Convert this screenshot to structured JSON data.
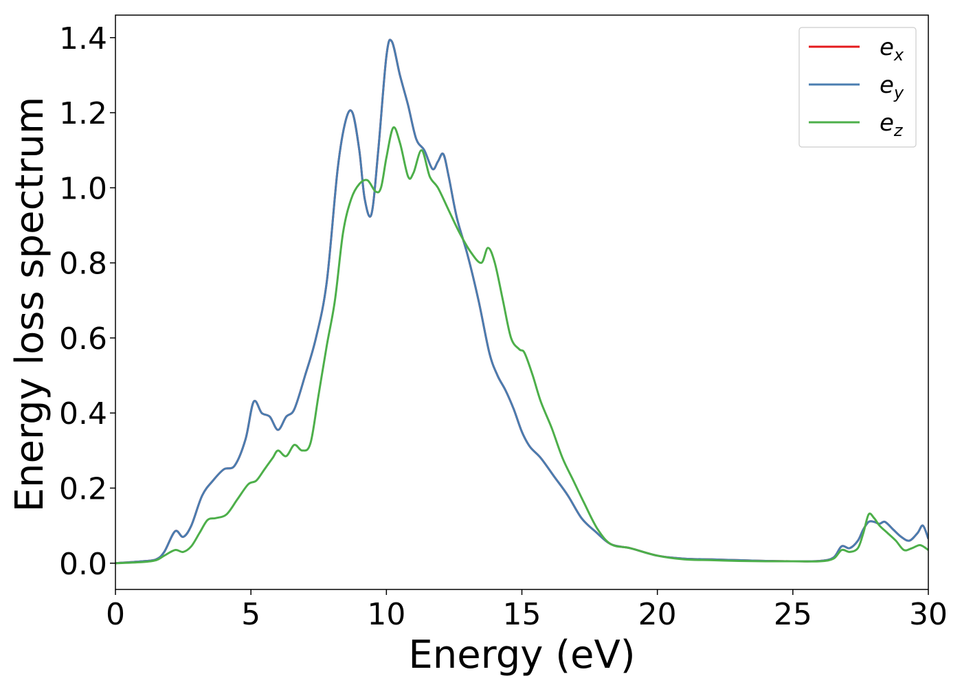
{
  "chart_data": {
    "type": "line",
    "title": "",
    "xlabel": "Energy (eV)",
    "ylabel": "Energy loss spectrum",
    "xlim": [
      0,
      30
    ],
    "ylim": [
      -0.07,
      1.46
    ],
    "xticks": [
      0,
      5,
      10,
      15,
      20,
      25,
      30
    ],
    "xtick_labels": [
      "0",
      "5",
      "10",
      "15",
      "20",
      "25",
      "30"
    ],
    "yticks": [
      0.0,
      0.2,
      0.4,
      0.6,
      0.8,
      1.0,
      1.2,
      1.4
    ],
    "ytick_labels": [
      "0.0",
      "0.2",
      "0.4",
      "0.6",
      "0.8",
      "1.0",
      "1.2",
      "1.4"
    ],
    "grid": false,
    "legend_position": "top-right",
    "series": [
      {
        "name": "e_x",
        "legend_base": "e",
        "legend_sub": "x",
        "color": "#e41a1c",
        "x": [
          0,
          1,
          1.5,
          1.8,
          2.2,
          2.5,
          2.8,
          3.2,
          3.6,
          4.0,
          4.4,
          4.8,
          5.1,
          5.4,
          5.7,
          6.0,
          6.3,
          6.6,
          7.0,
          7.4,
          7.8,
          8.2,
          8.5,
          8.75,
          9.0,
          9.2,
          9.45,
          9.7,
          10.0,
          10.2,
          10.5,
          10.8,
          11.1,
          11.4,
          11.7,
          11.9,
          12.1,
          12.3,
          12.6,
          13.0,
          13.4,
          13.8,
          14.1,
          14.4,
          14.7,
          15.0,
          15.3,
          15.7,
          16.2,
          16.7,
          17.2,
          17.7,
          18.3,
          19.0,
          20.0,
          21.0,
          22.0,
          23.0,
          24.0,
          25.0,
          26.0,
          26.5,
          26.8,
          27.1,
          27.4,
          27.6,
          27.8,
          28.0,
          28.2,
          28.4,
          28.7,
          29.0,
          29.3,
          29.6,
          29.8,
          30.0
        ],
        "y": [
          0.0,
          0.005,
          0.01,
          0.03,
          0.085,
          0.07,
          0.1,
          0.18,
          0.22,
          0.25,
          0.26,
          0.33,
          0.43,
          0.4,
          0.39,
          0.355,
          0.39,
          0.41,
          0.5,
          0.6,
          0.75,
          1.05,
          1.18,
          1.2,
          1.1,
          0.97,
          0.93,
          1.1,
          1.35,
          1.39,
          1.3,
          1.22,
          1.13,
          1.1,
          1.05,
          1.07,
          1.09,
          1.03,
          0.92,
          0.82,
          0.7,
          0.56,
          0.5,
          0.46,
          0.41,
          0.35,
          0.31,
          0.28,
          0.23,
          0.18,
          0.12,
          0.085,
          0.05,
          0.04,
          0.02,
          0.012,
          0.01,
          0.008,
          0.006,
          0.005,
          0.006,
          0.015,
          0.045,
          0.04,
          0.06,
          0.09,
          0.11,
          0.11,
          0.105,
          0.11,
          0.09,
          0.07,
          0.06,
          0.08,
          0.1,
          0.065
        ]
      },
      {
        "name": "e_y",
        "legend_base": "e",
        "legend_sub": "y",
        "color": "#4a7db0",
        "x": [
          0,
          1,
          1.5,
          1.8,
          2.2,
          2.5,
          2.8,
          3.2,
          3.6,
          4.0,
          4.4,
          4.8,
          5.1,
          5.4,
          5.7,
          6.0,
          6.3,
          6.6,
          7.0,
          7.4,
          7.8,
          8.2,
          8.5,
          8.75,
          9.0,
          9.2,
          9.45,
          9.7,
          10.0,
          10.2,
          10.5,
          10.8,
          11.1,
          11.4,
          11.7,
          11.9,
          12.1,
          12.3,
          12.6,
          13.0,
          13.4,
          13.8,
          14.1,
          14.4,
          14.7,
          15.0,
          15.3,
          15.7,
          16.2,
          16.7,
          17.2,
          17.7,
          18.3,
          19.0,
          20.0,
          21.0,
          22.0,
          23.0,
          24.0,
          25.0,
          26.0,
          26.5,
          26.8,
          27.1,
          27.4,
          27.6,
          27.8,
          28.0,
          28.2,
          28.4,
          28.7,
          29.0,
          29.3,
          29.6,
          29.8,
          30.0
        ],
        "y": [
          0.0,
          0.005,
          0.01,
          0.03,
          0.085,
          0.07,
          0.1,
          0.18,
          0.22,
          0.25,
          0.26,
          0.33,
          0.43,
          0.4,
          0.39,
          0.355,
          0.39,
          0.41,
          0.5,
          0.6,
          0.75,
          1.05,
          1.18,
          1.2,
          1.1,
          0.97,
          0.93,
          1.1,
          1.35,
          1.39,
          1.3,
          1.22,
          1.13,
          1.1,
          1.05,
          1.07,
          1.09,
          1.03,
          0.92,
          0.82,
          0.7,
          0.56,
          0.5,
          0.46,
          0.41,
          0.35,
          0.31,
          0.28,
          0.23,
          0.18,
          0.12,
          0.085,
          0.05,
          0.04,
          0.02,
          0.012,
          0.01,
          0.008,
          0.006,
          0.005,
          0.006,
          0.015,
          0.045,
          0.04,
          0.06,
          0.09,
          0.11,
          0.11,
          0.105,
          0.11,
          0.09,
          0.07,
          0.06,
          0.08,
          0.1,
          0.065
        ]
      },
      {
        "name": "e_z",
        "legend_base": "e",
        "legend_sub": "z",
        "color": "#4daf4a",
        "x": [
          0,
          1,
          1.5,
          1.8,
          2.2,
          2.5,
          2.8,
          3.1,
          3.4,
          3.7,
          4.1,
          4.5,
          4.9,
          5.2,
          5.5,
          5.8,
          6.0,
          6.3,
          6.6,
          6.9,
          7.2,
          7.5,
          7.8,
          8.1,
          8.4,
          8.7,
          9.0,
          9.3,
          9.6,
          9.8,
          10.0,
          10.25,
          10.5,
          10.8,
          11.0,
          11.3,
          11.6,
          11.9,
          12.3,
          12.7,
          13.1,
          13.5,
          13.75,
          14.0,
          14.3,
          14.6,
          14.9,
          15.1,
          15.4,
          15.7,
          16.1,
          16.5,
          16.9,
          17.3,
          17.8,
          18.3,
          19.0,
          20.0,
          21.0,
          22.0,
          23.0,
          24.0,
          25.0,
          26.0,
          26.5,
          26.8,
          27.1,
          27.4,
          27.6,
          27.8,
          28.0,
          28.2,
          28.5,
          28.8,
          29.1,
          29.4,
          29.7,
          30.0
        ],
        "y": [
          0.0,
          0.003,
          0.008,
          0.02,
          0.035,
          0.03,
          0.045,
          0.08,
          0.115,
          0.12,
          0.13,
          0.17,
          0.21,
          0.22,
          0.25,
          0.28,
          0.3,
          0.285,
          0.315,
          0.3,
          0.32,
          0.45,
          0.58,
          0.7,
          0.88,
          0.97,
          1.01,
          1.02,
          0.99,
          1.0,
          1.08,
          1.16,
          1.12,
          1.03,
          1.04,
          1.1,
          1.03,
          1.0,
          0.94,
          0.88,
          0.83,
          0.8,
          0.84,
          0.8,
          0.7,
          0.6,
          0.57,
          0.56,
          0.5,
          0.43,
          0.36,
          0.28,
          0.22,
          0.16,
          0.09,
          0.05,
          0.04,
          0.02,
          0.01,
          0.008,
          0.006,
          0.005,
          0.005,
          0.005,
          0.012,
          0.035,
          0.03,
          0.04,
          0.08,
          0.13,
          0.12,
          0.1,
          0.08,
          0.06,
          0.035,
          0.04,
          0.048,
          0.035
        ]
      }
    ]
  }
}
